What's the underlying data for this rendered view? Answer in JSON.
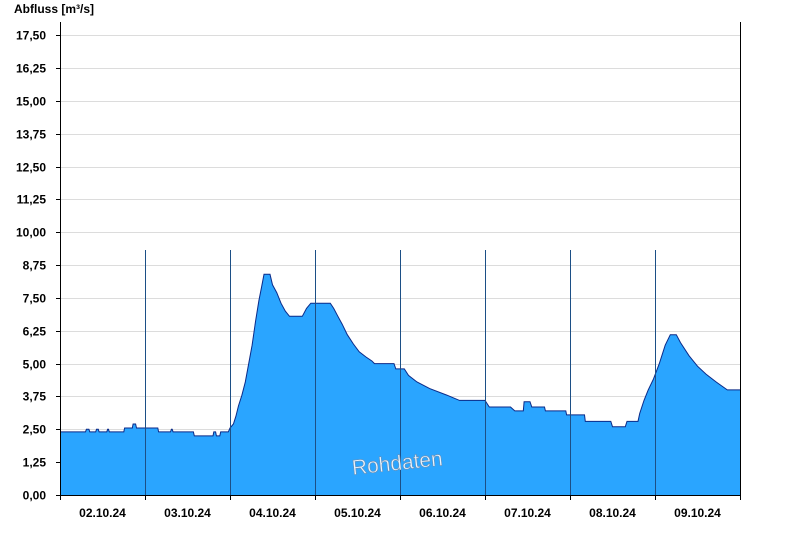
{
  "chart_data": {
    "type": "area",
    "ylabel": "Abfluss [m³/s]",
    "watermark": "Rohdaten",
    "ylim": [
      0,
      18
    ],
    "y_ticks": [
      "0,00",
      "1,25",
      "2,50",
      "3,75",
      "5,00",
      "6,25",
      "7,50",
      "8,75",
      "10,00",
      "11,25",
      "12,50",
      "13,75",
      "15,00",
      "16,25",
      "17,50"
    ],
    "y_tick_values": [
      0,
      1.25,
      2.5,
      3.75,
      5,
      6.25,
      7.5,
      8.75,
      10,
      11.25,
      12.5,
      13.75,
      15,
      16.25,
      17.5
    ],
    "x_ticks": [
      "02.10.24",
      "03.10.24",
      "04.10.24",
      "05.10.24",
      "06.10.24",
      "07.10.24",
      "08.10.24",
      "09.10.24"
    ],
    "xlim_days": [
      1.0,
      9.0
    ],
    "grid": {
      "horizontal": true,
      "vertical_day_lines": true
    },
    "colors": {
      "fill": "#2aa5ff",
      "line": "#0b2a88",
      "grid": "#dcdcdc",
      "axis": "#000000"
    },
    "series": [
      {
        "values": [
          [
            1.0,
            2.4
          ],
          [
            1.3,
            2.4
          ],
          [
            1.31,
            2.5
          ],
          [
            1.34,
            2.5
          ],
          [
            1.35,
            2.4
          ],
          [
            1.42,
            2.4
          ],
          [
            1.43,
            2.5
          ],
          [
            1.45,
            2.5
          ],
          [
            1.46,
            2.4
          ],
          [
            1.55,
            2.4
          ],
          [
            1.56,
            2.5
          ],
          [
            1.57,
            2.5
          ],
          [
            1.58,
            2.4
          ],
          [
            1.75,
            2.4
          ],
          [
            1.76,
            2.55
          ],
          [
            1.85,
            2.55
          ],
          [
            1.86,
            2.7
          ],
          [
            1.89,
            2.7
          ],
          [
            1.9,
            2.55
          ],
          [
            2.15,
            2.55
          ],
          [
            2.16,
            2.4
          ],
          [
            2.3,
            2.4
          ],
          [
            2.31,
            2.5
          ],
          [
            2.32,
            2.5
          ],
          [
            2.33,
            2.4
          ],
          [
            2.57,
            2.4
          ],
          [
            2.58,
            2.25
          ],
          [
            2.8,
            2.25
          ],
          [
            2.81,
            2.4
          ],
          [
            2.83,
            2.4
          ],
          [
            2.84,
            2.25
          ],
          [
            2.88,
            2.25
          ],
          [
            2.89,
            2.4
          ],
          [
            2.98,
            2.4
          ],
          [
            3.0,
            2.55
          ],
          [
            3.04,
            2.7
          ],
          [
            3.07,
            3.0
          ],
          [
            3.1,
            3.4
          ],
          [
            3.14,
            3.8
          ],
          [
            3.18,
            4.3
          ],
          [
            3.22,
            5.0
          ],
          [
            3.26,
            5.7
          ],
          [
            3.3,
            6.6
          ],
          [
            3.34,
            7.4
          ],
          [
            3.37,
            7.9
          ],
          [
            3.4,
            8.4
          ],
          [
            3.47,
            8.4
          ],
          [
            3.5,
            8.0
          ],
          [
            3.55,
            7.7
          ],
          [
            3.6,
            7.3
          ],
          [
            3.65,
            7.0
          ],
          [
            3.7,
            6.8
          ],
          [
            3.85,
            6.8
          ],
          [
            3.9,
            7.1
          ],
          [
            3.95,
            7.3
          ],
          [
            4.18,
            7.3
          ],
          [
            4.22,
            7.1
          ],
          [
            4.27,
            6.8
          ],
          [
            4.32,
            6.5
          ],
          [
            4.38,
            6.1
          ],
          [
            4.45,
            5.75
          ],
          [
            4.52,
            5.45
          ],
          [
            4.6,
            5.25
          ],
          [
            4.67,
            5.1
          ],
          [
            4.7,
            5.0
          ],
          [
            4.93,
            5.0
          ],
          [
            4.95,
            4.8
          ],
          [
            5.05,
            4.8
          ],
          [
            5.1,
            4.55
          ],
          [
            5.2,
            4.3
          ],
          [
            5.35,
            4.05
          ],
          [
            5.55,
            3.8
          ],
          [
            5.7,
            3.6
          ],
          [
            6.0,
            3.6
          ],
          [
            6.05,
            3.35
          ],
          [
            6.3,
            3.35
          ],
          [
            6.35,
            3.2
          ],
          [
            6.45,
            3.2
          ],
          [
            6.46,
            3.55
          ],
          [
            6.53,
            3.55
          ],
          [
            6.55,
            3.35
          ],
          [
            6.7,
            3.35
          ],
          [
            6.71,
            3.2
          ],
          [
            6.95,
            3.2
          ],
          [
            6.96,
            3.05
          ],
          [
            7.17,
            3.05
          ],
          [
            7.18,
            2.8
          ],
          [
            7.48,
            2.8
          ],
          [
            7.5,
            2.6
          ],
          [
            7.65,
            2.6
          ],
          [
            7.67,
            2.8
          ],
          [
            7.8,
            2.8
          ],
          [
            7.82,
            3.1
          ],
          [
            7.87,
            3.6
          ],
          [
            7.92,
            4.0
          ],
          [
            7.98,
            4.4
          ],
          [
            8.05,
            5.0
          ],
          [
            8.12,
            5.7
          ],
          [
            8.18,
            6.1
          ],
          [
            8.25,
            6.1
          ],
          [
            8.3,
            5.8
          ],
          [
            8.4,
            5.3
          ],
          [
            8.5,
            4.9
          ],
          [
            8.6,
            4.6
          ],
          [
            8.72,
            4.3
          ],
          [
            8.85,
            4.0
          ],
          [
            9.0,
            4.0
          ]
        ]
      }
    ]
  }
}
